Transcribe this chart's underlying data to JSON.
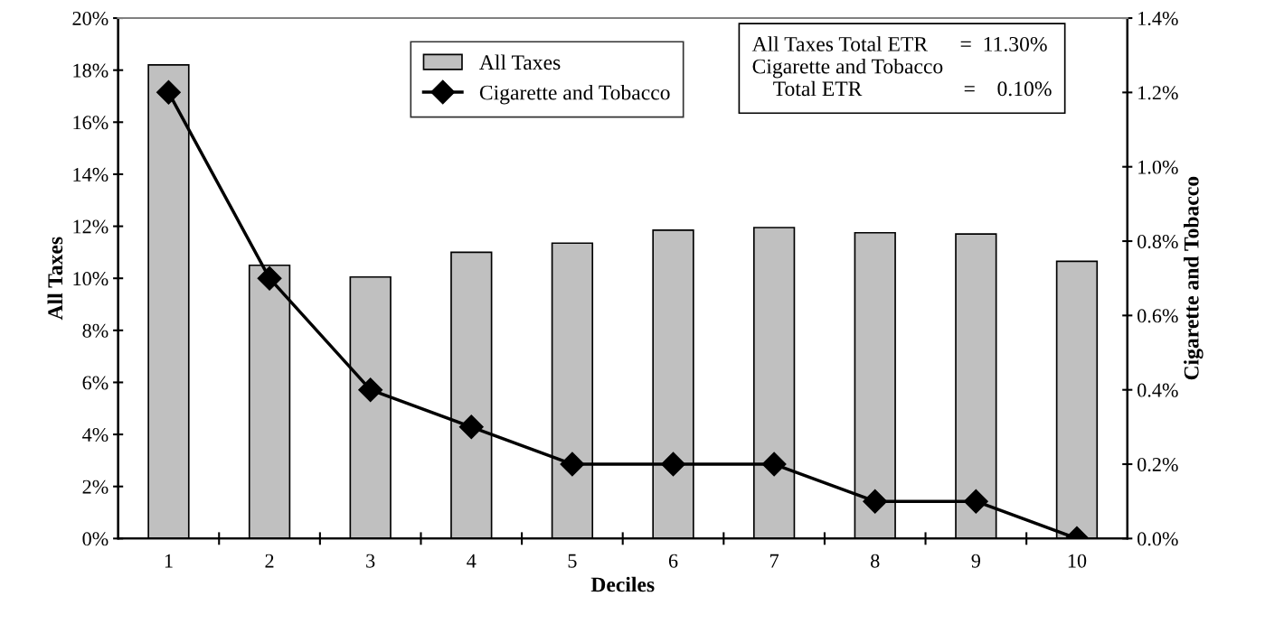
{
  "chart_data": {
    "type": "bar",
    "xlabel": "Deciles",
    "ylabel": "All Taxes",
    "y2label": "Cigarette and Tobacco",
    "categories": [
      "1",
      "2",
      "3",
      "4",
      "5",
      "6",
      "7",
      "8",
      "9",
      "10"
    ],
    "series": [
      {
        "name": "All Taxes",
        "color": "#c0c0c0",
        "values": [
          18.2,
          10.5,
          10.05,
          11.0,
          11.35,
          11.85,
          11.95,
          11.75,
          11.7,
          10.65
        ]
      },
      {
        "name": "Cigarette and Tobacco",
        "type": "line",
        "axis": "y2",
        "color": "#000000",
        "marker": "diamond",
        "values": [
          1.2,
          0.7,
          0.4,
          0.3,
          0.2,
          0.2,
          0.2,
          0.1,
          0.1,
          0.0
        ]
      }
    ],
    "ylim": [
      0,
      20
    ],
    "yticks": [
      {
        "value": 0,
        "label": "0%"
      },
      {
        "value": 2,
        "label": "2%"
      },
      {
        "value": 4,
        "label": "4%"
      },
      {
        "value": 6,
        "label": "6%"
      },
      {
        "value": 8,
        "label": "8%"
      },
      {
        "value": 10,
        "label": "10%"
      },
      {
        "value": 12,
        "label": "12%"
      },
      {
        "value": 14,
        "label": "14%"
      },
      {
        "value": 16,
        "label": "16%"
      },
      {
        "value": 18,
        "label": "18%"
      },
      {
        "value": 20,
        "label": "20%"
      }
    ],
    "y2lim": [
      0,
      1.4
    ],
    "y2ticks": [
      {
        "value": 0,
        "label": "0.0%"
      },
      {
        "value": 0.2,
        "label": "0.2%"
      },
      {
        "value": 0.4,
        "label": "0.4%"
      },
      {
        "value": 0.6,
        "label": "0.6%"
      },
      {
        "value": 0.8,
        "label": "0.8%"
      },
      {
        "value": 1.0,
        "label": "1.0%"
      },
      {
        "value": 1.2,
        "label": "1.2%"
      },
      {
        "value": 1.4,
        "label": "1.4%"
      }
    ],
    "annotations": [
      "All Taxes Total ETR      =  11.30%\nCigarette and Tobacco\n    Total ETR                   =    0.10%"
    ],
    "legend": "top",
    "grid": false
  }
}
